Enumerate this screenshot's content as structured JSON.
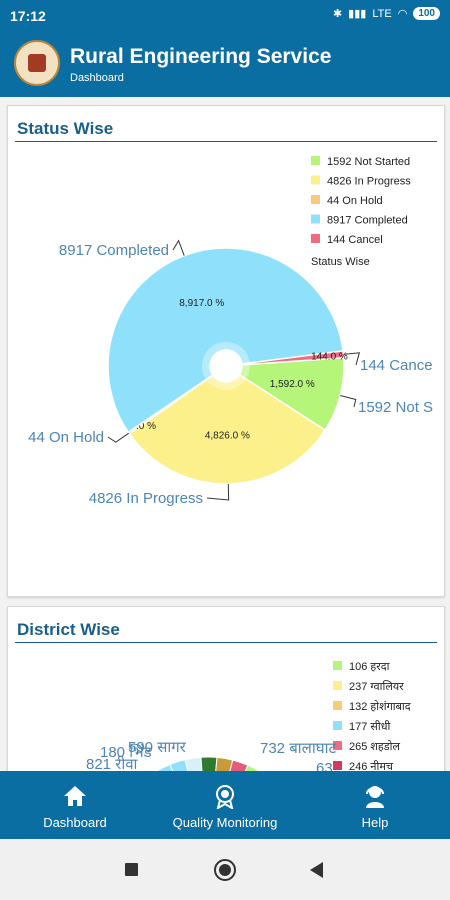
{
  "status_bar": {
    "time": "17:12",
    "network": "LTE",
    "battery": "100"
  },
  "app": {
    "title": "Rural Engineering Service",
    "subtitle": "Dashboard"
  },
  "status_card": {
    "title": "Status Wise"
  },
  "district_card": {
    "title": "District Wise"
  },
  "chart_data": [
    {
      "type": "pie",
      "title": "Status Wise",
      "legend_placement": "top-right",
      "legend_title": "Status Wise",
      "slices": [
        {
          "label": "Not Started",
          "value": 1592,
          "legend": "1592 Not Started",
          "outside_label": "1592 Not S",
          "inside_label": "1,592.0 %",
          "color": "#b5f57a"
        },
        {
          "label": "In Progress",
          "value": 4826,
          "legend": "4826 In Progress",
          "outside_label": "4826 In Progress",
          "inside_label": "4,826.0 %",
          "color": "#fbf08a"
        },
        {
          "label": "On Hold",
          "value": 44,
          "legend": "44 On Hold",
          "outside_label": "44 On Hold",
          "inside_label": "44.0 %",
          "color": "#fbc97b"
        },
        {
          "label": "Completed",
          "value": 8917,
          "legend": "8917 Completed",
          "outside_label": "8917 Completed",
          "inside_label": "8,917.0 %",
          "color": "#8fe1fb"
        },
        {
          "label": "Cancel",
          "value": 144,
          "legend": "144 Cancel",
          "outside_label": "144 Cance",
          "inside_label": "144.0 %",
          "color": "#f36a82"
        }
      ]
    },
    {
      "type": "pie",
      "title": "District Wise",
      "legend_placement": "top-right",
      "slices": [
        {
          "label": "हरदा",
          "value": 106,
          "legend": "106 हरदा",
          "color": "#b5f57a"
        },
        {
          "label": "ग्वालियर",
          "value": 237,
          "legend": "237 ग्वालियर",
          "color": "#fbf08a"
        },
        {
          "label": "होशंगाबाद",
          "value": 132,
          "legend": "132 होशंगाबाद",
          "color": "#fbc97b"
        },
        {
          "label": "सीधी",
          "value": 177,
          "legend": "177 सीधी",
          "color": "#8fe1fb"
        },
        {
          "label": "शहडोल",
          "value": 265,
          "legend": "265 शहडोल",
          "color": "#f36a82"
        },
        {
          "label": "नीमच",
          "value": 246,
          "legend": "246 नीमच",
          "color": "#d23a63"
        }
      ],
      "visible_outside_labels": [
        "180 भिंड",
        "590 सागर",
        "821 रीवा",
        "732 बालाघाट",
        "63"
      ]
    }
  ],
  "bottom_nav": [
    {
      "label": "Dashboard",
      "icon": "home-icon"
    },
    {
      "label": "Quality Monitoring",
      "icon": "award-icon"
    },
    {
      "label": "Help",
      "icon": "support-icon"
    }
  ]
}
